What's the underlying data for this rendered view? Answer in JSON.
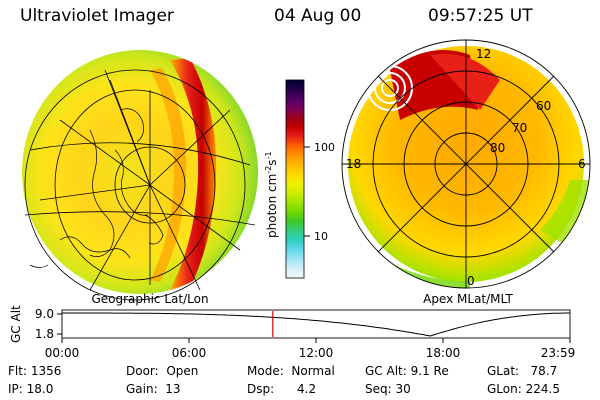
{
  "header": {
    "instrument": "Ultraviolet Imager",
    "date": "04 Aug 00",
    "time": "09:57:25 UT"
  },
  "colorbar": {
    "unit": "photon cm",
    "exp1": "-2",
    "unit2": "s",
    "exp2": "-1",
    "ticks": [
      "100",
      "10"
    ],
    "colors": [
      "#000030",
      "#24004a",
      "#500064",
      "#7a0060",
      "#9a0018",
      "#c40000",
      "#e82018",
      "#ff6000",
      "#ff9400",
      "#ffb800",
      "#ffd800",
      "#f0f000",
      "#d0ec00",
      "#a0e400",
      "#70d800",
      "#40c828",
      "#30cc80",
      "#30d0c0",
      "#60d8e8",
      "#a0e4f4",
      "#d8eefa",
      "#f4f8fc"
    ]
  },
  "geo_map": {
    "caption": "Geographic Lat/Lon"
  },
  "polar_map": {
    "caption": "Apex MLat/MLT",
    "mlt_labels": {
      "top": "12",
      "left": "18",
      "right": "6",
      "bottom": "0"
    },
    "lat_labels": [
      "60",
      "70",
      "80"
    ]
  },
  "altitude_plot": {
    "ylabel": "GC Alt",
    "yticks": [
      "9.0",
      "1.8"
    ],
    "xticks": [
      "00:00",
      "06:00",
      "12:00",
      "18:00",
      "23:59"
    ],
    "marker_hour": 9.96,
    "min_hour": 17.4
  },
  "info": {
    "flt": {
      "label": "Flt:",
      "value": "1356"
    },
    "ip": {
      "label": "IP:",
      "value": "18.0"
    },
    "door": {
      "label": "Door:",
      "value": "Open"
    },
    "gain": {
      "label": "Gain:",
      "value": "13"
    },
    "mode": {
      "label": "Mode:",
      "value": "Normal"
    },
    "dsp": {
      "label": "Dsp:",
      "value": "4.2"
    },
    "gcalt": {
      "label": "GC Alt:",
      "value": "9.1 Re"
    },
    "seq": {
      "label": "Seq:",
      "value": "30"
    },
    "glat": {
      "label": "GLat:",
      "value": "78.7"
    },
    "glon": {
      "label": "GLon:",
      "value": "224.5"
    }
  }
}
